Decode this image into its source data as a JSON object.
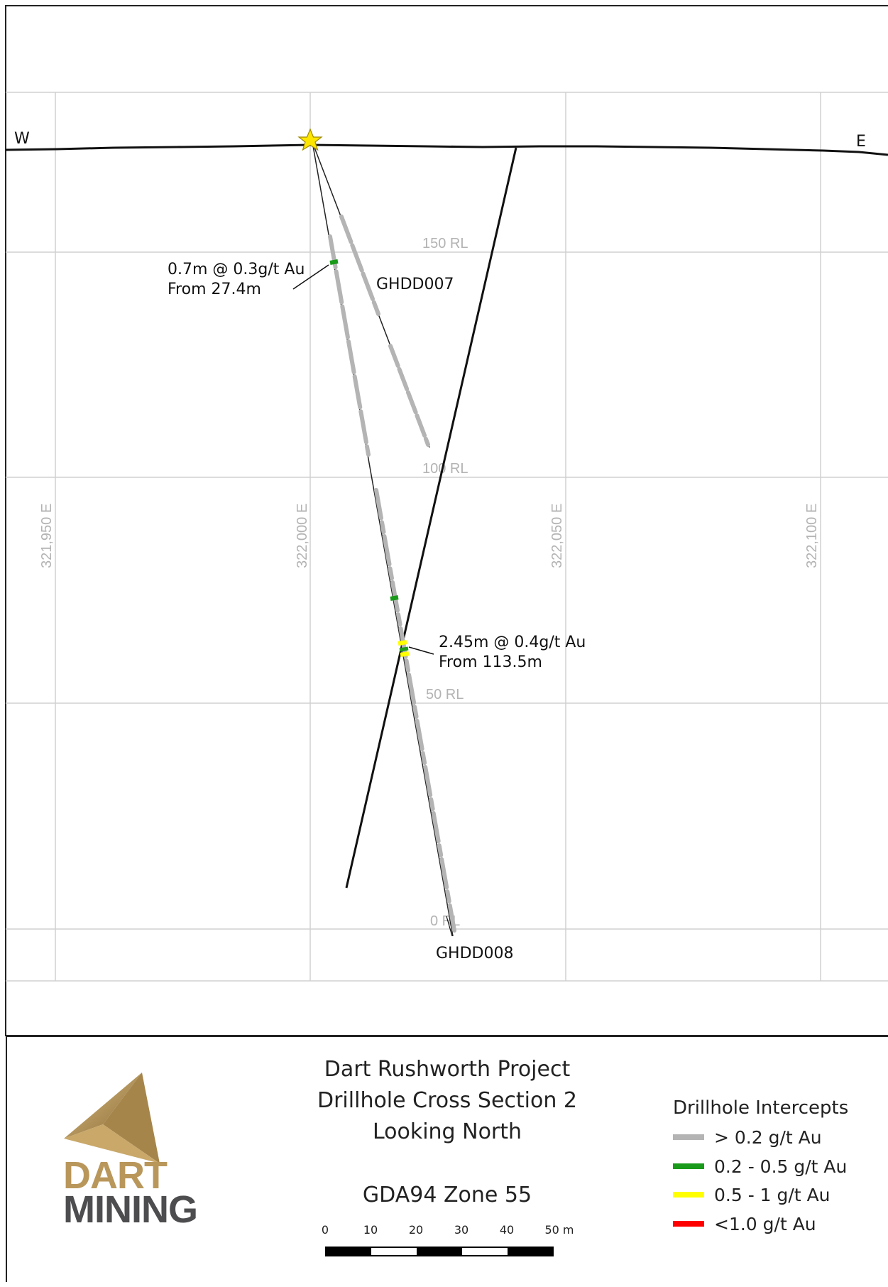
{
  "section": {
    "west_label": "W",
    "east_label": "E",
    "rl_labels": [
      "150 RL",
      "100 RL",
      "50 RL",
      "0 RL"
    ],
    "easting_labels": [
      "321,950 E",
      "322,000 E",
      "322,050 E",
      "322,100 E"
    ],
    "holes": [
      {
        "name": "GHDD007"
      },
      {
        "name": "GHDD008"
      }
    ],
    "intercepts": [
      {
        "line1": "0.7m @ 0.3g/t Au",
        "line2": "From 27.4m"
      },
      {
        "line1": "2.45m @ 0.4g/t Au",
        "line2": "From 113.5m"
      }
    ],
    "colors": {
      "trace": "#b4b4b4",
      "green": "#1a9a1a",
      "yellow": "#ffff00",
      "red": "#ff0000",
      "collar": "#ffe600",
      "grid": "#d0d0d0"
    }
  },
  "title": {
    "lines": [
      "Dart Rushworth Project",
      "Drillhole Cross Section 2",
      "Looking North"
    ],
    "projection": "GDA94 Zone 55"
  },
  "logo": {
    "line1": "DART",
    "line2": "MINING",
    "gold": "#b9975b",
    "grey": "#4d4d4f"
  },
  "legend": {
    "title": "Drillhole Intercepts",
    "items": [
      {
        "label": "> 0.2 g/t Au",
        "color": "#b4b4b4"
      },
      {
        "label": "0.2 - 0.5 g/t Au",
        "color": "#1a9a1a"
      },
      {
        "label": "0.5 - 1 g/t Au",
        "color": "#ffff00"
      },
      {
        "label": "<1.0 g/t Au",
        "color": "#ff0000"
      }
    ]
  },
  "scale_bar": {
    "ticks": [
      "0",
      "10",
      "20",
      "30",
      "40",
      "50 m"
    ]
  }
}
